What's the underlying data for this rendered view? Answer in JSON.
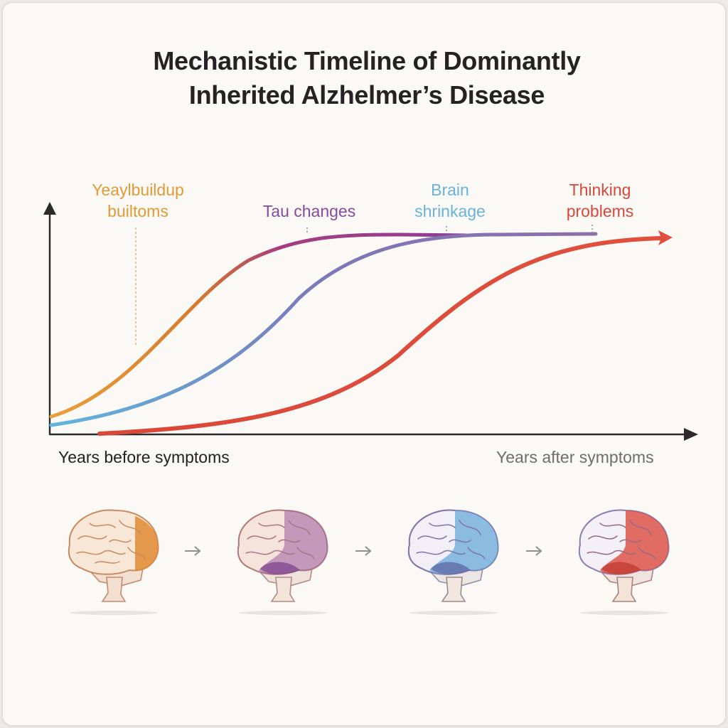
{
  "title": {
    "line1": "Mechanistic Timeline of Dominantly",
    "line2": "Inherited Alzhelmer’s Disease"
  },
  "stages": [
    {
      "label_lines": [
        "Yeaylbuildup",
        "builtoms"
      ],
      "color": "#e29a36"
    },
    {
      "label_lines": [
        "Tau changes"
      ],
      "color": "#8a4a9a"
    },
    {
      "label_lines": [
        "Brain",
        "shrinkage"
      ],
      "color": "#6ab3d8"
    },
    {
      "label_lines": [
        "Thinking",
        "problems"
      ],
      "color": "#d9473a"
    }
  ],
  "axes": {
    "x_left_label": "Years before symptoms",
    "x_right_label": "Years after symptoms",
    "axis_color": "#2a2a2a"
  },
  "curve_colors": {
    "first": [
      "#e8a13b",
      "#d97a2b",
      "#a63d7d",
      "#8e3f97"
    ],
    "second": [
      "#5fb6dd",
      "#7b79b8",
      "#8c6fa8"
    ],
    "third": [
      "#d9473a",
      "#e0503c"
    ]
  },
  "brain_sequence": [
    {
      "name": "brain-amyloid-stage",
      "highlight_color": "#e08a34",
      "highlight_region": "back"
    },
    {
      "name": "brain-tau-stage",
      "highlight_color": "#9b5a9e",
      "highlight_region": "back-lower"
    },
    {
      "name": "brain-shrinkage-stage",
      "highlight_color": "#6aa9d9",
      "highlight_region": "back-lower"
    },
    {
      "name": "brain-thinking-stage",
      "highlight_color": "#db4b3f",
      "highlight_region": "back-lower"
    }
  ],
  "icons": {
    "step_arrow": "arrow-right-icon",
    "axis_arrow": "arrow-head-icon"
  }
}
